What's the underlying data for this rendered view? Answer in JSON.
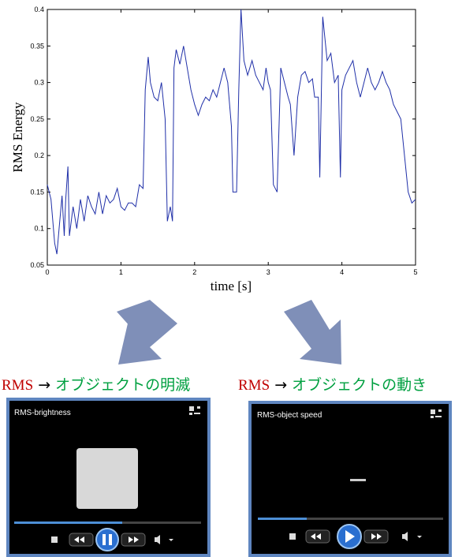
{
  "chart_data": {
    "type": "line",
    "ylabel": "RMS Energy",
    "xlabel": "time [s]",
    "color": "#1f2fa8",
    "xlim": [
      0,
      5
    ],
    "ylim": [
      0.05,
      0.4
    ],
    "xticks": [
      0,
      1,
      2,
      3,
      4,
      5
    ],
    "yticks": [
      0.05,
      0.1,
      0.15,
      0.2,
      0.25,
      0.3,
      0.35,
      0.4
    ],
    "x": [
      0,
      0.05,
      0.1,
      0.13,
      0.16,
      0.2,
      0.23,
      0.25,
      0.28,
      0.3,
      0.35,
      0.4,
      0.45,
      0.5,
      0.55,
      0.6,
      0.65,
      0.7,
      0.75,
      0.8,
      0.85,
      0.9,
      0.95,
      1.0,
      1.05,
      1.1,
      1.15,
      1.2,
      1.25,
      1.3,
      1.33,
      1.37,
      1.4,
      1.45,
      1.5,
      1.55,
      1.6,
      1.63,
      1.67,
      1.7,
      1.72,
      1.75,
      1.8,
      1.85,
      1.9,
      1.95,
      2.0,
      2.05,
      2.1,
      2.15,
      2.2,
      2.25,
      2.3,
      2.35,
      2.4,
      2.45,
      2.5,
      2.52,
      2.57,
      2.6,
      2.63,
      2.67,
      2.72,
      2.78,
      2.83,
      2.88,
      2.93,
      2.97,
      3.0,
      3.03,
      3.07,
      3.12,
      3.17,
      3.22,
      3.27,
      3.3,
      3.35,
      3.4,
      3.45,
      3.5,
      3.55,
      3.6,
      3.63,
      3.68,
      3.7,
      3.74,
      3.8,
      3.85,
      3.9,
      3.95,
      3.98,
      4.0,
      4.05,
      4.1,
      4.15,
      4.2,
      4.25,
      4.3,
      4.35,
      4.4,
      4.45,
      4.5,
      4.55,
      4.6,
      4.65,
      4.7,
      4.75,
      4.8,
      4.85,
      4.9,
      4.95,
      5.0
    ],
    "values": [
      0.16,
      0.14,
      0.08,
      0.065,
      0.1,
      0.145,
      0.09,
      0.14,
      0.185,
      0.09,
      0.13,
      0.1,
      0.14,
      0.11,
      0.145,
      0.13,
      0.12,
      0.15,
      0.12,
      0.145,
      0.135,
      0.14,
      0.155,
      0.13,
      0.125,
      0.135,
      0.135,
      0.13,
      0.16,
      0.155,
      0.29,
      0.335,
      0.3,
      0.28,
      0.275,
      0.3,
      0.25,
      0.11,
      0.13,
      0.11,
      0.32,
      0.345,
      0.325,
      0.35,
      0.32,
      0.29,
      0.27,
      0.255,
      0.27,
      0.28,
      0.275,
      0.29,
      0.28,
      0.3,
      0.32,
      0.3,
      0.24,
      0.15,
      0.15,
      0.29,
      0.4,
      0.33,
      0.31,
      0.33,
      0.31,
      0.3,
      0.29,
      0.32,
      0.3,
      0.29,
      0.16,
      0.15,
      0.32,
      0.3,
      0.28,
      0.27,
      0.2,
      0.28,
      0.31,
      0.315,
      0.3,
      0.305,
      0.28,
      0.28,
      0.17,
      0.39,
      0.33,
      0.34,
      0.3,
      0.31,
      0.17,
      0.29,
      0.31,
      0.32,
      0.33,
      0.3,
      0.28,
      0.3,
      0.32,
      0.3,
      0.29,
      0.3,
      0.315,
      0.3,
      0.29,
      0.27,
      0.26,
      0.25,
      0.2,
      0.15,
      0.135,
      0.14
    ]
  },
  "captions": [
    {
      "parts": [
        "RMS",
        "→",
        "オブジェクトの明滅"
      ]
    },
    {
      "parts": [
        "RMS",
        "→",
        "オブジェクトの動き"
      ]
    }
  ],
  "players": [
    {
      "title": "RMS-brightness"
    },
    {
      "title": "RMS-object speed"
    }
  ]
}
